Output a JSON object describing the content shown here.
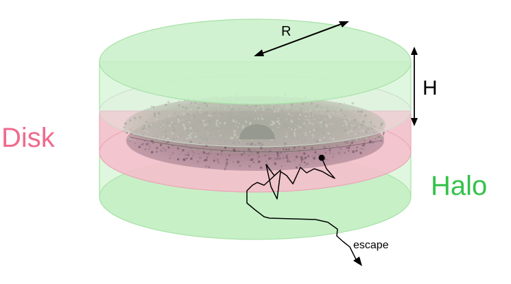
{
  "labels": {
    "radius": "R",
    "height": "H",
    "disk": "Disk",
    "halo": "Halo",
    "escape": "escape"
  },
  "colors": {
    "halo_fill": "#c8f0c8",
    "halo_stroke": "#8fd68f",
    "disk_fill": "#f6b8c8",
    "disk_label": "#f06a8c",
    "halo_label": "#33c24a",
    "particles": "#8c8a80",
    "bulge": "#6e6e64",
    "path": "#000000"
  }
}
